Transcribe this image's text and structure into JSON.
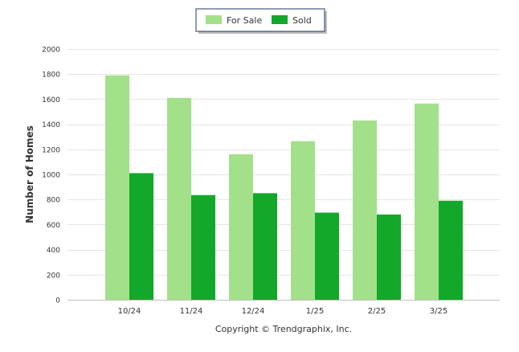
{
  "chart_data": {
    "type": "bar",
    "title": "",
    "xlabel": "",
    "ylabel": "Number of Homes",
    "categories": [
      "10/24",
      "11/24",
      "12/24",
      "1/25",
      "2/25",
      "3/25"
    ],
    "series": [
      {
        "name": "For Sale",
        "color": "#a3e08a",
        "values": [
          1790,
          1610,
          1160,
          1265,
          1430,
          1565
        ]
      },
      {
        "name": "Sold",
        "color": "#13a82a",
        "values": [
          1010,
          835,
          850,
          695,
          680,
          790
        ]
      }
    ],
    "ylim": [
      0,
      2000
    ],
    "yticks": [
      0,
      200,
      400,
      600,
      800,
      1000,
      1200,
      1400,
      1600,
      1800,
      2000
    ],
    "grid": true,
    "legend_position": "top-center",
    "footer": "Copyright © Trendgraphix, Inc."
  }
}
